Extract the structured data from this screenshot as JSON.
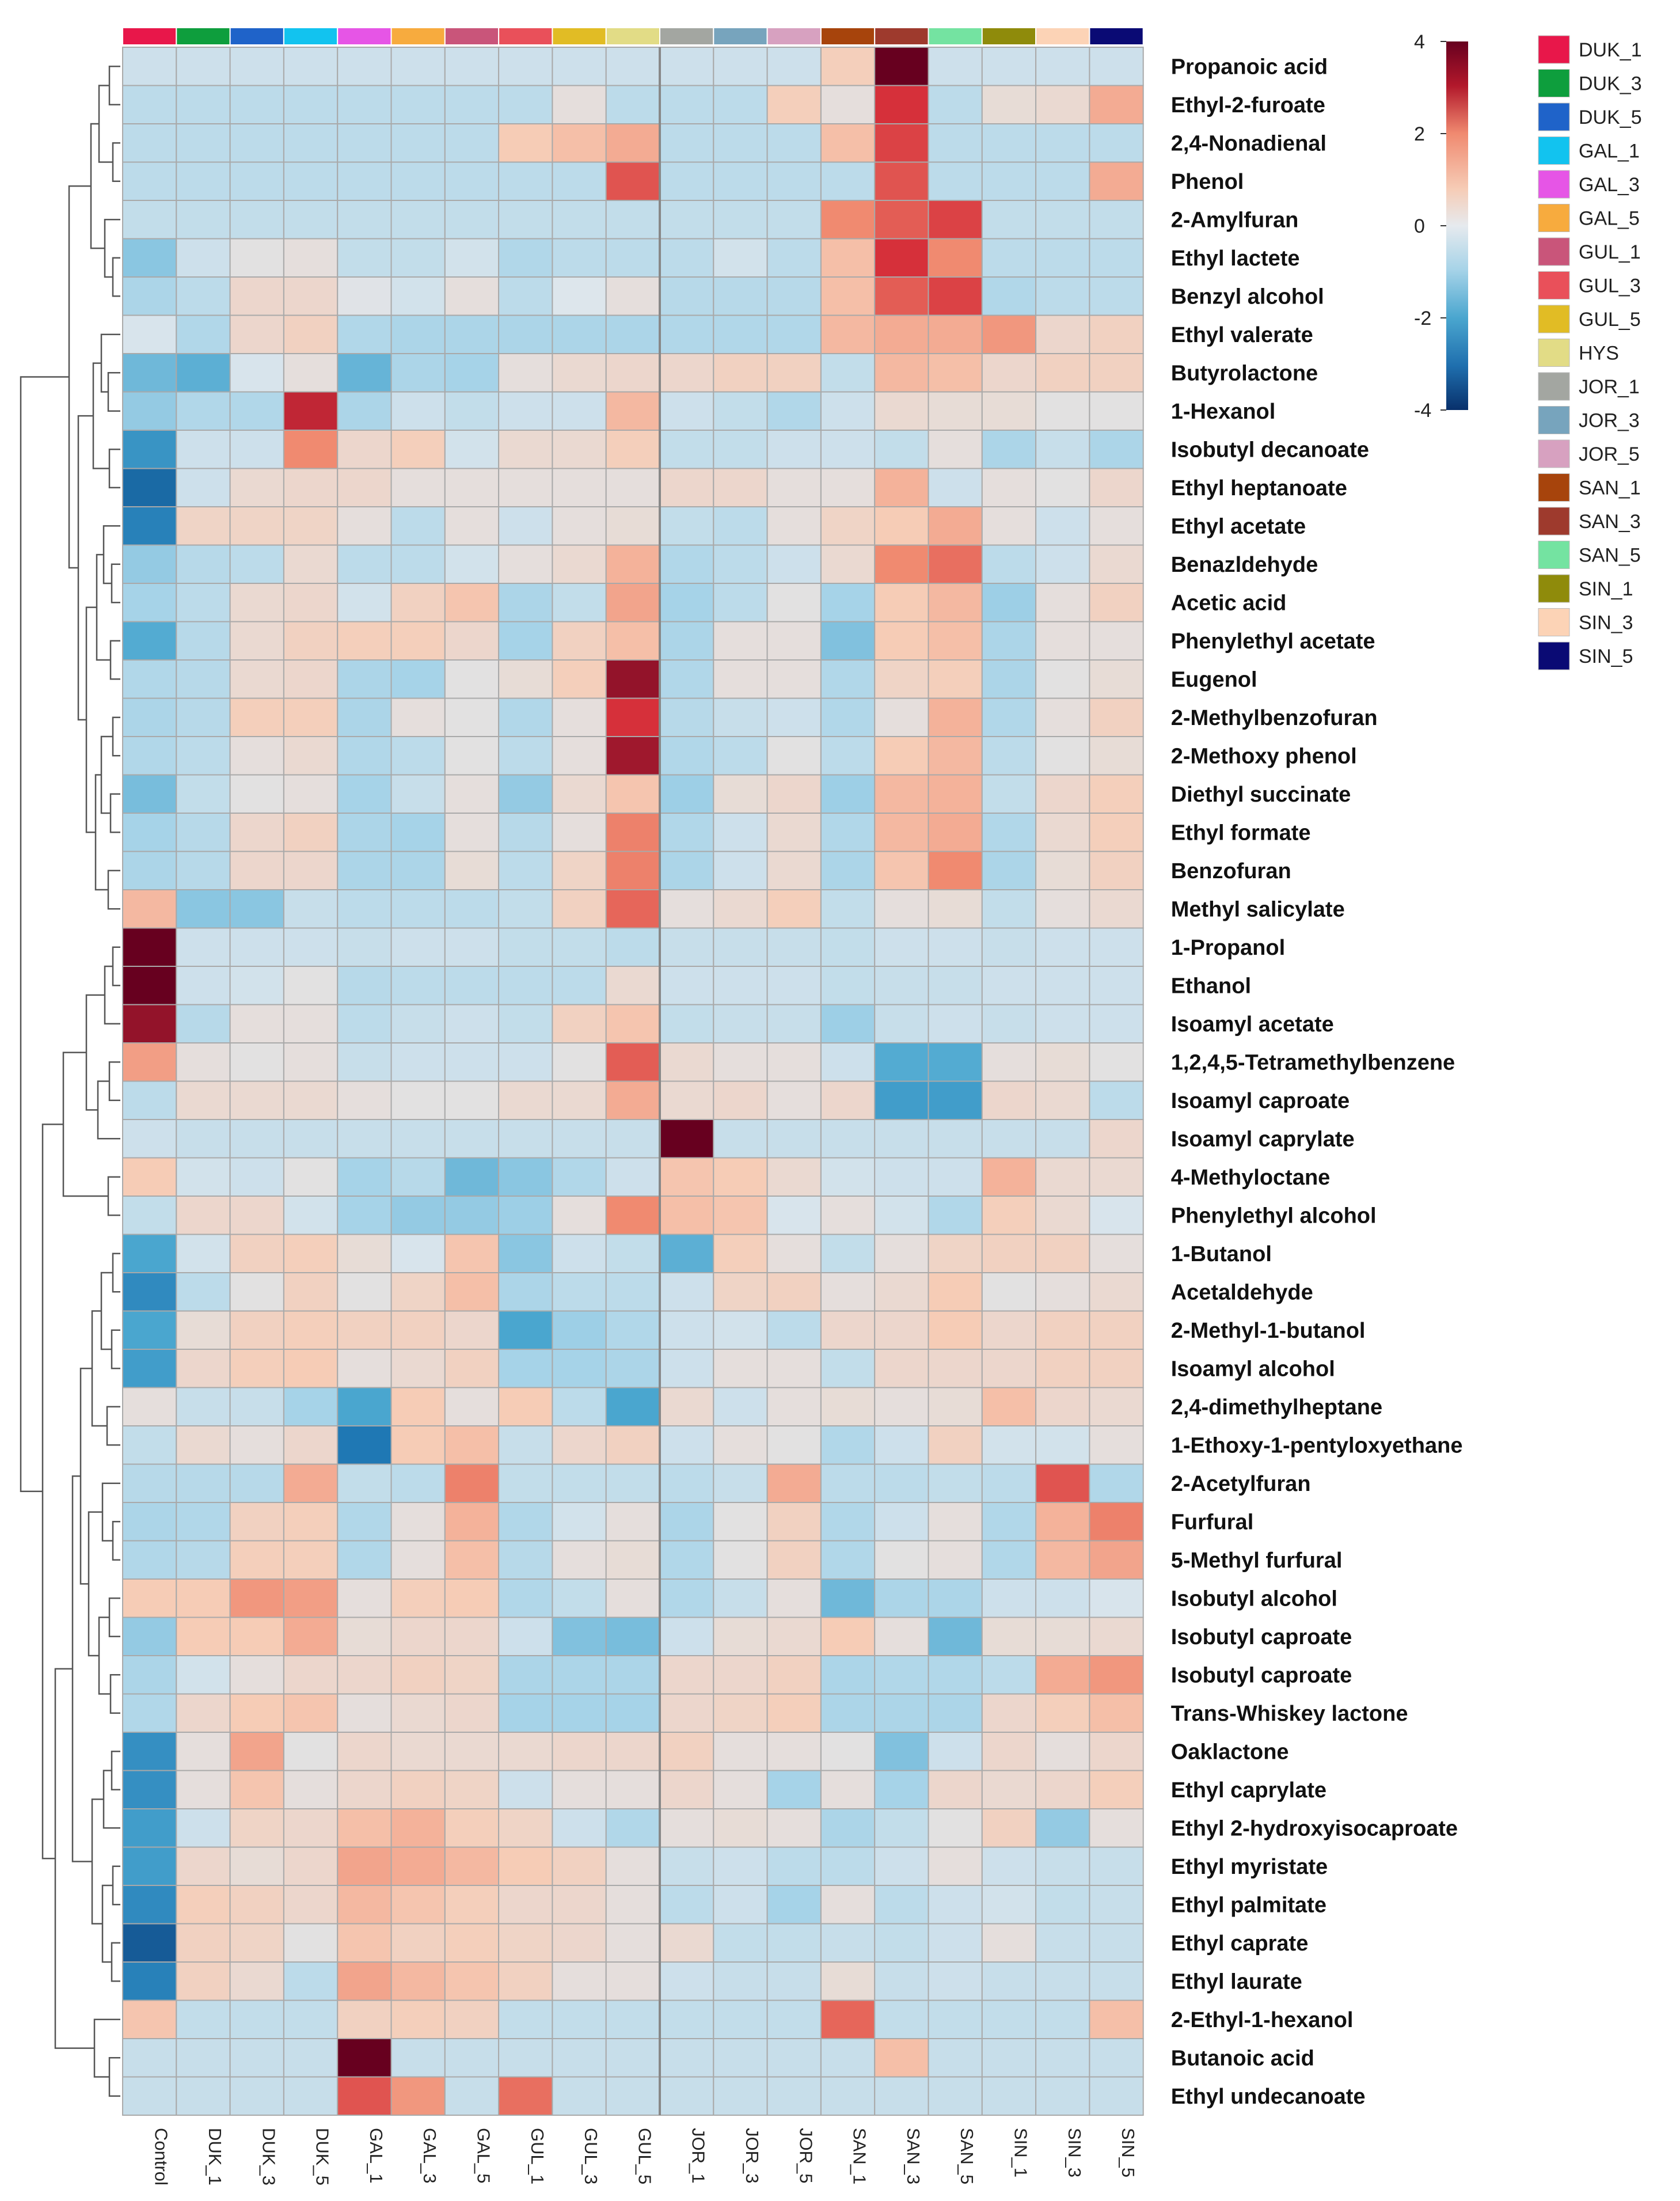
{
  "chart_data": {
    "type": "heatmap",
    "title": "",
    "rows": [
      "Propanoic acid",
      "Ethyl-2-furoate",
      "2,4-Nonadienal",
      "Phenol",
      "2-Amylfuran",
      "Ethyl lactete",
      "Benzyl alcohol",
      "Ethyl valerate",
      "Butyrolactone",
      "1-Hexanol",
      "Isobutyl decanoate",
      "Ethyl heptanoate",
      "Ethyl acetate",
      "Benazldehyde",
      "Acetic acid",
      "Phenylethyl acetate",
      "Eugenol",
      "2-Methylbenzofuran",
      "2-Methoxy phenol",
      "Diethyl succinate",
      "Ethyl formate",
      "Benzofuran",
      "Methyl salicylate",
      "1-Propanol",
      "Ethanol",
      "Isoamyl acetate",
      "1,2,4,5-Tetramethylbenzene",
      "Isoamyl caproate",
      "Isoamyl caprylate",
      "4-Methyloctane",
      "Phenylethyl alcohol",
      "1-Butanol",
      "Acetaldehyde",
      "2-Methyl-1-butanol",
      "Isoamyl alcohol",
      "2,4-dimethylheptane",
      "1-Ethoxy-1-pentyloxyethane",
      "2-Acetylfuran",
      "Furfural",
      "5-Methyl furfural",
      "Isobutyl alcohol",
      "Isobutyl caproate",
      "Isobutyl caproate",
      "Trans-Whiskey lactone",
      "Oaklactone",
      "Ethyl caprylate",
      "Ethyl 2-hydroxyisocaproate",
      "Ethyl myristate",
      "Ethyl palmitate",
      "Ethyl caprate",
      "Ethyl laurate",
      "2-Ethyl-1-hexanol",
      "Butanoic acid",
      "Ethyl undecanoate"
    ],
    "columns": [
      "Control",
      "DUK_1",
      "DUK_3",
      "DUK_5",
      "GAL_1",
      "GAL_3",
      "GAL_5",
      "GUL_1",
      "GUL_3",
      "GUL_5",
      "JOR_1",
      "JOR_3",
      "JOR_5",
      "SAN_1",
      "SAN_3",
      "SAN_5",
      "SIN_1",
      "SIN_3",
      "SIN_5"
    ],
    "values": [
      [
        -0.3,
        -0.3,
        -0.3,
        -0.3,
        -0.3,
        -0.3,
        -0.3,
        -0.3,
        -0.3,
        -0.3,
        -0.3,
        -0.3,
        -0.3,
        0.9,
        4.0,
        -0.3,
        -0.3,
        -0.3,
        -0.3
      ],
      [
        -0.6,
        -0.6,
        -0.6,
        -0.6,
        -0.6,
        -0.6,
        -0.6,
        -0.6,
        0.3,
        -0.6,
        -0.6,
        -0.6,
        0.9,
        0.3,
        3.0,
        -0.6,
        0.4,
        0.5,
        1.5
      ],
      [
        -0.6,
        -0.6,
        -0.6,
        -0.6,
        -0.6,
        -0.6,
        -0.6,
        1.0,
        1.2,
        1.5,
        -0.6,
        -0.6,
        -0.6,
        1.2,
        2.8,
        -0.6,
        -0.6,
        -0.6,
        -0.6
      ],
      [
        -0.6,
        -0.6,
        -0.6,
        -0.6,
        -0.6,
        -0.6,
        -0.6,
        -0.6,
        -0.6,
        2.6,
        -0.6,
        -0.6,
        -0.6,
        -0.6,
        2.6,
        -0.6,
        -0.6,
        -0.6,
        1.5
      ],
      [
        -0.5,
        -0.5,
        -0.5,
        -0.5,
        -0.5,
        -0.5,
        -0.5,
        -0.5,
        -0.5,
        -0.5,
        -0.5,
        -0.5,
        -0.5,
        2.0,
        2.5,
        2.8,
        -0.5,
        -0.5,
        -0.5
      ],
      [
        -1.3,
        -0.3,
        0.2,
        0.3,
        -0.5,
        -0.5,
        -0.2,
        -0.8,
        -0.6,
        -0.6,
        -0.6,
        -0.2,
        -0.6,
        1.2,
        3.0,
        2.0,
        -0.6,
        -0.6,
        -0.6
      ],
      [
        -0.9,
        -0.6,
        0.6,
        0.6,
        0.1,
        -0.2,
        0.3,
        -0.6,
        0.0,
        0.3,
        -0.7,
        -0.7,
        -0.7,
        1.2,
        2.5,
        2.8,
        -0.8,
        -0.6,
        -0.6
      ],
      [
        -0.1,
        -0.8,
        0.6,
        0.8,
        -0.8,
        -0.9,
        -0.9,
        -0.9,
        -0.9,
        -0.9,
        -0.8,
        -0.8,
        -0.8,
        1.3,
        1.5,
        1.5,
        1.8,
        0.6,
        0.8
      ],
      [
        -1.6,
        -1.8,
        -0.1,
        0.3,
        -1.7,
        -0.9,
        -1.0,
        0.3,
        0.5,
        0.6,
        0.6,
        0.8,
        0.8,
        -0.5,
        1.3,
        1.2,
        0.6,
        0.8,
        0.8
      ],
      [
        -1.2,
        -0.8,
        -0.8,
        3.2,
        -0.9,
        -0.3,
        -0.5,
        -0.3,
        -0.3,
        1.3,
        -0.3,
        -0.5,
        -0.8,
        -0.3,
        0.5,
        0.4,
        0.4,
        0.2,
        0.2
      ],
      [
        -2.4,
        -0.3,
        -0.3,
        2.0,
        0.6,
        0.9,
        -0.2,
        0.5,
        0.5,
        0.9,
        -0.5,
        -0.5,
        -0.3,
        -0.3,
        -0.5,
        0.3,
        -0.9,
        -0.4,
        -0.9
      ],
      [
        -3.2,
        -0.3,
        0.5,
        0.6,
        0.6,
        0.3,
        0.3,
        0.3,
        0.3,
        0.3,
        0.6,
        0.6,
        0.3,
        0.3,
        1.4,
        -0.3,
        0.3,
        0.2,
        0.6
      ],
      [
        -2.8,
        0.7,
        0.7,
        0.7,
        0.3,
        -0.6,
        0.3,
        -0.3,
        0.3,
        0.4,
        -0.5,
        -0.6,
        0.3,
        0.7,
        1.0,
        1.5,
        0.3,
        -0.3,
        0.3
      ],
      [
        -1.2,
        -0.7,
        -0.6,
        0.5,
        -0.6,
        -0.6,
        -0.2,
        0.3,
        0.5,
        1.4,
        -0.8,
        -0.6,
        -0.3,
        0.5,
        2.0,
        2.3,
        -0.6,
        -0.3,
        0.5
      ],
      [
        -1.0,
        -0.6,
        0.5,
        0.6,
        -0.2,
        0.8,
        1.1,
        -0.9,
        -0.5,
        1.6,
        -1.0,
        -0.6,
        0.2,
        -1.0,
        1.0,
        1.3,
        -1.1,
        0.3,
        0.8
      ],
      [
        -1.9,
        -0.7,
        0.5,
        0.8,
        0.9,
        0.9,
        0.6,
        -1.0,
        0.8,
        1.2,
        -0.9,
        0.3,
        0.3,
        -1.4,
        1.0,
        1.2,
        -0.9,
        0.3,
        0.3
      ],
      [
        -0.8,
        -0.7,
        0.5,
        0.6,
        -0.9,
        -1.0,
        0.2,
        0.4,
        0.9,
        3.6,
        -0.8,
        0.3,
        0.3,
        -0.8,
        0.7,
        0.9,
        -0.9,
        0.2,
        0.4
      ],
      [
        -0.9,
        -0.7,
        0.9,
        0.9,
        -0.9,
        0.3,
        0.2,
        -0.8,
        0.3,
        3.0,
        -0.7,
        -0.4,
        -0.3,
        -0.8,
        0.3,
        1.4,
        -0.8,
        0.3,
        0.8
      ],
      [
        -0.8,
        -0.6,
        0.3,
        0.5,
        -0.8,
        -0.6,
        0.2,
        -0.6,
        0.3,
        3.5,
        -0.8,
        -0.6,
        0.2,
        -0.6,
        1.0,
        1.3,
        -0.6,
        0.2,
        0.4
      ],
      [
        -1.5,
        -0.5,
        0.2,
        0.3,
        -1.0,
        -0.4,
        0.3,
        -1.2,
        0.5,
        1.1,
        -1.1,
        0.4,
        0.6,
        -1.1,
        1.3,
        1.4,
        -0.5,
        0.6,
        0.9
      ],
      [
        -1.0,
        -0.7,
        0.6,
        0.8,
        -0.9,
        -1.0,
        0.3,
        -0.7,
        0.3,
        2.1,
        -0.8,
        -0.3,
        0.5,
        -0.8,
        1.3,
        1.5,
        -0.8,
        0.5,
        0.9
      ],
      [
        -0.9,
        -0.7,
        0.6,
        0.6,
        -0.9,
        -0.9,
        0.4,
        -0.6,
        0.7,
        2.1,
        -0.9,
        -0.3,
        0.5,
        -0.9,
        1.1,
        2.0,
        -0.9,
        0.4,
        0.8
      ],
      [
        1.3,
        -1.3,
        -1.3,
        -0.4,
        -0.6,
        -0.6,
        -0.6,
        -0.5,
        0.8,
        2.4,
        0.3,
        0.5,
        0.9,
        -0.5,
        0.3,
        0.4,
        -0.5,
        0.3,
        0.5
      ],
      [
        4.0,
        -0.3,
        -0.3,
        -0.3,
        -0.4,
        -0.3,
        -0.3,
        -0.5,
        -0.5,
        -0.6,
        -0.4,
        -0.4,
        -0.4,
        -0.5,
        -0.3,
        -0.3,
        -0.4,
        -0.3,
        -0.3
      ],
      [
        4.0,
        -0.3,
        -0.2,
        0.2,
        -0.7,
        -0.6,
        -0.6,
        -0.6,
        -0.6,
        0.5,
        -0.3,
        -0.3,
        -0.3,
        -0.5,
        -0.4,
        -0.4,
        -0.3,
        -0.3,
        -0.3
      ],
      [
        3.6,
        -0.7,
        0.3,
        0.3,
        -0.6,
        -0.4,
        -0.3,
        -0.5,
        0.8,
        1.1,
        -0.5,
        -0.4,
        -0.4,
        -1.1,
        -0.4,
        -0.3,
        -0.4,
        -0.3,
        -0.3
      ],
      [
        1.7,
        0.3,
        0.2,
        0.3,
        -0.4,
        -0.3,
        -0.3,
        -0.3,
        0.2,
        2.5,
        0.5,
        0.3,
        0.3,
        -0.3,
        -1.9,
        -1.9,
        0.3,
        0.4,
        0.2
      ],
      [
        -0.6,
        0.5,
        0.5,
        0.5,
        0.3,
        0.2,
        0.2,
        0.5,
        0.5,
        1.5,
        0.5,
        0.6,
        0.3,
        0.6,
        -2.2,
        -2.2,
        0.6,
        0.5,
        -0.6
      ],
      [
        -0.3,
        -0.4,
        -0.4,
        -0.4,
        -0.4,
        -0.4,
        -0.4,
        -0.4,
        -0.4,
        -0.4,
        4.0,
        -0.4,
        -0.4,
        -0.4,
        -0.4,
        -0.4,
        -0.4,
        -0.4,
        0.6
      ],
      [
        1.0,
        -0.2,
        -0.3,
        0.2,
        -1.0,
        -0.7,
        -1.6,
        -1.3,
        -0.8,
        -0.3,
        1.1,
        1.0,
        0.5,
        -0.2,
        -0.3,
        -0.3,
        1.4,
        0.5,
        0.5
      ],
      [
        -0.5,
        0.6,
        0.6,
        -0.2,
        -1.0,
        -1.2,
        -1.2,
        -1.1,
        0.3,
        2.0,
        1.2,
        1.1,
        -0.1,
        0.3,
        -0.2,
        -0.8,
        0.9,
        0.5,
        -0.1
      ],
      [
        -2.0,
        -0.2,
        0.8,
        0.9,
        0.4,
        -0.1,
        1.1,
        -1.3,
        -0.3,
        -0.5,
        -1.8,
        0.9,
        0.3,
        -0.5,
        0.3,
        0.7,
        0.8,
        0.8,
        0.3
      ],
      [
        -2.6,
        -0.6,
        0.2,
        0.8,
        0.2,
        0.7,
        1.2,
        -0.9,
        -0.6,
        -0.6,
        -0.3,
        0.7,
        0.8,
        0.3,
        0.5,
        1.0,
        0.2,
        0.3,
        0.5
      ],
      [
        -2.0,
        0.4,
        0.8,
        0.9,
        0.8,
        0.8,
        0.6,
        -2.0,
        -1.1,
        -0.8,
        -0.3,
        -0.2,
        -0.6,
        0.6,
        0.6,
        1.0,
        0.6,
        0.8,
        0.8
      ],
      [
        -2.2,
        0.6,
        0.9,
        1.0,
        0.3,
        0.5,
        0.8,
        -1.0,
        -1.0,
        -0.9,
        -0.3,
        0.3,
        0.3,
        -0.5,
        0.6,
        0.6,
        0.6,
        0.8,
        0.8
      ],
      [
        0.3,
        -0.4,
        -0.4,
        -1.0,
        -2.0,
        1.0,
        0.3,
        1.0,
        -0.6,
        -2.0,
        0.5,
        -0.3,
        0.3,
        0.4,
        0.3,
        0.4,
        1.2,
        0.6,
        0.5
      ],
      [
        -0.5,
        0.5,
        0.3,
        0.6,
        -3.0,
        1.0,
        1.2,
        -0.4,
        0.6,
        0.8,
        -0.3,
        0.3,
        0.2,
        -0.8,
        -0.3,
        0.8,
        -0.2,
        -0.2,
        0.3
      ],
      [
        -0.7,
        -0.7,
        -0.7,
        1.5,
        -0.5,
        -0.6,
        2.1,
        -0.5,
        -0.5,
        -0.5,
        -0.6,
        -0.4,
        1.5,
        -0.6,
        -0.6,
        -0.5,
        -0.6,
        2.6,
        -0.8
      ],
      [
        -0.9,
        -0.8,
        0.8,
        0.9,
        -0.8,
        0.3,
        1.4,
        -0.8,
        -0.2,
        0.3,
        -0.9,
        0.2,
        0.8,
        -0.8,
        -0.3,
        0.3,
        -0.8,
        1.4,
        2.1
      ],
      [
        -0.8,
        -0.7,
        0.9,
        0.9,
        -0.8,
        0.3,
        1.2,
        -0.7,
        0.3,
        0.4,
        -0.8,
        0.2,
        0.8,
        -0.8,
        0.2,
        0.3,
        -0.8,
        1.3,
        1.6
      ],
      [
        1.0,
        1.0,
        1.8,
        1.7,
        0.3,
        0.9,
        1.0,
        -0.8,
        -0.5,
        0.3,
        -0.8,
        -0.4,
        0.3,
        -1.6,
        -0.9,
        -0.9,
        -0.3,
        -0.3,
        -0.1
      ],
      [
        -1.2,
        1.0,
        1.0,
        1.5,
        0.4,
        0.6,
        0.6,
        -0.3,
        -1.4,
        -1.5,
        -0.3,
        0.4,
        0.5,
        1.0,
        0.3,
        -1.6,
        0.4,
        0.4,
        0.5
      ],
      [
        -0.9,
        -0.2,
        0.3,
        0.6,
        0.6,
        0.8,
        0.7,
        -0.9,
        -0.9,
        -0.9,
        0.6,
        0.6,
        0.8,
        -0.9,
        -0.8,
        -0.8,
        -0.6,
        1.5,
        1.8
      ],
      [
        -0.8,
        0.6,
        1.0,
        1.1,
        0.3,
        0.5,
        0.6,
        -1.0,
        -1.0,
        -1.0,
        0.6,
        0.7,
        0.9,
        -0.9,
        -0.9,
        -0.9,
        0.6,
        0.9,
        1.2
      ],
      [
        -2.5,
        0.3,
        1.6,
        0.2,
        0.6,
        0.5,
        0.5,
        0.5,
        0.6,
        0.6,
        0.8,
        0.3,
        0.3,
        0.2,
        -1.4,
        -0.3,
        0.6,
        0.3,
        0.6
      ],
      [
        -2.5,
        0.3,
        1.1,
        0.3,
        0.6,
        0.8,
        0.7,
        -0.3,
        0.3,
        0.3,
        0.6,
        0.3,
        -1.0,
        0.3,
        -1.0,
        0.6,
        0.5,
        0.6,
        0.9
      ],
      [
        -2.2,
        -0.3,
        0.7,
        0.6,
        1.2,
        1.4,
        0.9,
        0.7,
        -0.3,
        -0.8,
        0.3,
        0.4,
        0.3,
        -0.9,
        -0.5,
        0.2,
        0.8,
        -1.2,
        0.3
      ],
      [
        -2.2,
        0.6,
        0.4,
        0.6,
        1.6,
        1.5,
        1.3,
        1.0,
        0.8,
        0.3,
        -0.4,
        -0.3,
        -0.6,
        -0.6,
        -0.3,
        0.3,
        -0.3,
        -0.4,
        -0.4
      ],
      [
        -2.6,
        0.9,
        0.8,
        0.6,
        1.3,
        1.1,
        0.9,
        0.6,
        0.6,
        0.3,
        -0.6,
        -0.3,
        -1.0,
        0.3,
        -0.6,
        -0.3,
        -0.2,
        -0.5,
        -0.4
      ],
      [
        -3.4,
        0.8,
        0.7,
        0.2,
        1.1,
        0.8,
        0.9,
        0.7,
        0.6,
        0.3,
        0.5,
        -0.5,
        -0.5,
        -0.4,
        -0.5,
        -0.3,
        0.3,
        -0.4,
        -0.4
      ],
      [
        -2.8,
        0.8,
        0.5,
        -0.6,
        1.6,
        1.3,
        1.1,
        0.8,
        0.3,
        0.3,
        -0.3,
        -0.4,
        -0.4,
        0.4,
        -0.4,
        -0.3,
        -0.4,
        -0.4,
        -0.4
      ],
      [
        1.1,
        -0.5,
        -0.5,
        -0.5,
        0.8,
        0.9,
        0.8,
        -0.5,
        -0.5,
        -0.5,
        -0.5,
        -0.5,
        -0.5,
        2.4,
        -0.5,
        -0.5,
        -0.5,
        -0.5,
        1.2
      ],
      [
        -0.4,
        -0.4,
        -0.4,
        -0.4,
        4.0,
        -0.4,
        -0.4,
        -0.4,
        -0.4,
        -0.4,
        -0.4,
        -0.4,
        -0.4,
        -0.4,
        1.2,
        -0.4,
        -0.4,
        -0.4,
        -0.4
      ],
      [
        -0.4,
        -0.4,
        -0.4,
        -0.4,
        2.6,
        1.8,
        -0.4,
        2.3,
        -0.4,
        -0.4,
        -0.4,
        -0.4,
        -0.4,
        -0.4,
        -0.4,
        -0.4,
        -0.4,
        -0.4,
        -0.4
      ]
    ],
    "color_scale": {
      "min": -4,
      "max": 4,
      "ticks": [
        4,
        2,
        0,
        -2,
        -4
      ],
      "colors": [
        "#08306b",
        "#1f78b4",
        "#4aa6cf",
        "#a6d3e8",
        "#dde6ec",
        "#f6ccb6",
        "#f08a70",
        "#d6303a",
        "#67001f"
      ]
    },
    "group_legend": [
      {
        "name": "DUK_1",
        "color": "#e8174a"
      },
      {
        "name": "DUK_3",
        "color": "#0e9e3d"
      },
      {
        "name": "DUK_5",
        "color": "#1f63c9"
      },
      {
        "name": "GAL_1",
        "color": "#12c3ef"
      },
      {
        "name": "GAL_3",
        "color": "#e655e6"
      },
      {
        "name": "GAL_5",
        "color": "#f7ab3e"
      },
      {
        "name": "GUL_1",
        "color": "#c9557a"
      },
      {
        "name": "GUL_3",
        "color": "#e9505a"
      },
      {
        "name": "GUL_5",
        "color": "#e1bc25"
      },
      {
        "name": "HYS",
        "color": "#e2dc86"
      },
      {
        "name": "JOR_1",
        "color": "#a3a6a1"
      },
      {
        "name": "JOR_3",
        "color": "#77a4bd"
      },
      {
        "name": "JOR_5",
        "color": "#d7a1c0"
      },
      {
        "name": "SAN_1",
        "color": "#a7440c"
      },
      {
        "name": "SAN_3",
        "color": "#9e3a2d"
      },
      {
        "name": "SAN_5",
        "color": "#74e3a1"
      },
      {
        "name": "SIN_1",
        "color": "#8f8b0b"
      },
      {
        "name": "SIN_3",
        "color": "#fcd3b6"
      },
      {
        "name": "SIN_5",
        "color": "#0a0a74"
      }
    ],
    "top_annotation": [
      "#e8174a",
      "#0e9e3d",
      "#1f63c9",
      "#12c3ef",
      "#e655e6",
      "#f7ab3e",
      "#c9557a",
      "#e9505a",
      "#e1bc25",
      "#e2dc86",
      "#a3a6a1",
      "#77a4bd",
      "#d7a1c0",
      "#a7440c",
      "#9e3a2d",
      "#74e3a1",
      "#8f8b0b",
      "#fcd3b6",
      "#0a0a74"
    ],
    "row_dendrogram": "hierarchical clustering (left side)",
    "column_split_after": "GUL_5"
  }
}
